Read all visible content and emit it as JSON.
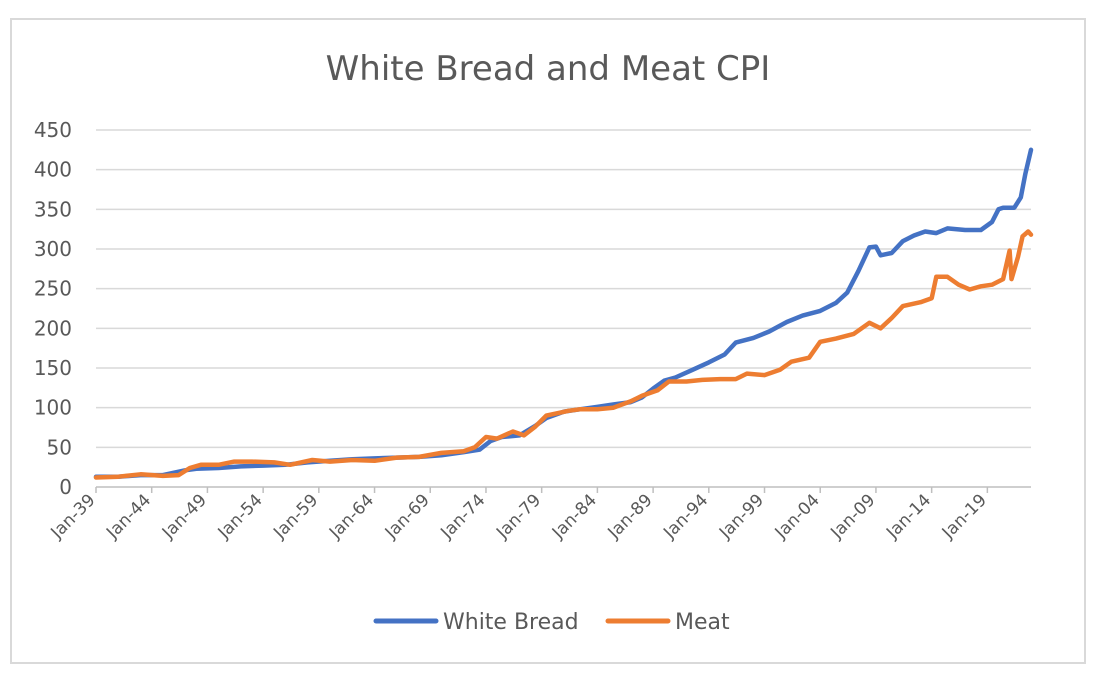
{
  "chart_data": {
    "type": "line",
    "title": "White Bread and Meat CPI",
    "xlabel": "",
    "ylabel": "",
    "ylim": [
      0,
      450
    ],
    "yticks": [
      0,
      50,
      100,
      150,
      200,
      250,
      300,
      350,
      400,
      450
    ],
    "xlim": [
      "Jan-39",
      "Dec-22"
    ],
    "x_tick_labels": [
      "Jan-39",
      "Jan-44",
      "Jan-49",
      "Jan-54",
      "Jan-59",
      "Jan-64",
      "Jan-69",
      "Jan-74",
      "Jan-79",
      "Jan-84",
      "Jan-89",
      "Jan-94",
      "Jan-99",
      "Jan-04",
      "Jan-09",
      "Jan-14",
      "Jan-19"
    ],
    "grid": "horizontal",
    "legend": "bottom",
    "series": [
      {
        "name": "White Bread",
        "color": "#4472c4",
        "points": [
          [
            "1939-01",
            13
          ],
          [
            "1941-01",
            13
          ],
          [
            "1943-01",
            15
          ],
          [
            "1945-01",
            15
          ],
          [
            "1947-01",
            21
          ],
          [
            "1948-01",
            23
          ],
          [
            "1950-01",
            24
          ],
          [
            "1952-01",
            26
          ],
          [
            "1954-01",
            27
          ],
          [
            "1956-01",
            28
          ],
          [
            "1958-01",
            31
          ],
          [
            "1960-01",
            33
          ],
          [
            "1962-01",
            35
          ],
          [
            "1964-01",
            36
          ],
          [
            "1966-01",
            37
          ],
          [
            "1968-01",
            38
          ],
          [
            "1970-01",
            40
          ],
          [
            "1972-01",
            44
          ],
          [
            "1973-06",
            47
          ],
          [
            "1974-06",
            58
          ],
          [
            "1975-06",
            63
          ],
          [
            "1977-01",
            65
          ],
          [
            "1978-06",
            77
          ],
          [
            "1979-06",
            87
          ],
          [
            "1981-01",
            95
          ],
          [
            "1982-06",
            98
          ],
          [
            "1984-01",
            101
          ],
          [
            "1985-06",
            104
          ],
          [
            "1987-01",
            107
          ],
          [
            "1988-01",
            113
          ],
          [
            "1989-01",
            124
          ],
          [
            "1990-01",
            134
          ],
          [
            "1991-01",
            138
          ],
          [
            "1992-06",
            147
          ],
          [
            "1994-01",
            157
          ],
          [
            "1995-06",
            167
          ],
          [
            "1996-06",
            182
          ],
          [
            "1998-01",
            188
          ],
          [
            "1999-06",
            196
          ],
          [
            "2001-01",
            208
          ],
          [
            "2002-06",
            216
          ],
          [
            "2004-01",
            222
          ],
          [
            "2005-06",
            232
          ],
          [
            "2006-06",
            245
          ],
          [
            "2007-06",
            272
          ],
          [
            "2008-06",
            302
          ],
          [
            "2009-01",
            303
          ],
          [
            "2009-06",
            292
          ],
          [
            "2010-06",
            295
          ],
          [
            "2011-06",
            310
          ],
          [
            "2012-06",
            317
          ],
          [
            "2013-06",
            322
          ],
          [
            "2014-06",
            320
          ],
          [
            "2015-06",
            326
          ],
          [
            "2017-01",
            324
          ],
          [
            "2018-06",
            324
          ],
          [
            "2019-06",
            334
          ],
          [
            "2020-01",
            350
          ],
          [
            "2020-06",
            352
          ],
          [
            "2021-06",
            352
          ],
          [
            "2022-01",
            365
          ],
          [
            "2022-06",
            395
          ],
          [
            "2022-12",
            425
          ]
        ]
      },
      {
        "name": "Meat",
        "color": "#ed7d31",
        "points": [
          [
            "1939-01",
            12
          ],
          [
            "1941-01",
            13
          ],
          [
            "1943-01",
            16
          ],
          [
            "1945-01",
            14
          ],
          [
            "1946-06",
            15
          ],
          [
            "1947-06",
            24
          ],
          [
            "1948-06",
            28
          ],
          [
            "1950-01",
            28
          ],
          [
            "1951-06",
            32
          ],
          [
            "1953-01",
            32
          ],
          [
            "1955-01",
            31
          ],
          [
            "1956-06",
            28
          ],
          [
            "1958-06",
            34
          ],
          [
            "1960-01",
            32
          ],
          [
            "1962-01",
            34
          ],
          [
            "1964-01",
            33
          ],
          [
            "1966-01",
            37
          ],
          [
            "1968-01",
            38
          ],
          [
            "1970-01",
            43
          ],
          [
            "1972-01",
            45
          ],
          [
            "1973-01",
            50
          ],
          [
            "1974-01",
            63
          ],
          [
            "1975-01",
            61
          ],
          [
            "1976-06",
            70
          ],
          [
            "1977-06",
            65
          ],
          [
            "1978-06",
            76
          ],
          [
            "1979-06",
            90
          ],
          [
            "1980-06",
            93
          ],
          [
            "1981-06",
            96
          ],
          [
            "1982-06",
            98
          ],
          [
            "1984-01",
            98
          ],
          [
            "1985-06",
            100
          ],
          [
            "1987-01",
            108
          ],
          [
            "1988-01",
            115
          ],
          [
            "1989-06",
            122
          ],
          [
            "1990-06",
            133
          ],
          [
            "1992-01",
            133
          ],
          [
            "1993-06",
            135
          ],
          [
            "1995-01",
            136
          ],
          [
            "1996-06",
            136
          ],
          [
            "1997-06",
            143
          ],
          [
            "1999-01",
            141
          ],
          [
            "2000-06",
            148
          ],
          [
            "2001-06",
            158
          ],
          [
            "2003-01",
            163
          ],
          [
            "2004-01",
            183
          ],
          [
            "2005-06",
            187
          ],
          [
            "2007-01",
            193
          ],
          [
            "2008-06",
            207
          ],
          [
            "2009-06",
            200
          ],
          [
            "2010-06",
            213
          ],
          [
            "2011-06",
            228
          ],
          [
            "2013-01",
            233
          ],
          [
            "2014-01",
            238
          ],
          [
            "2014-06",
            265
          ],
          [
            "2015-06",
            265
          ],
          [
            "2016-06",
            255
          ],
          [
            "2017-06",
            249
          ],
          [
            "2018-06",
            253
          ],
          [
            "2019-06",
            255
          ],
          [
            "2020-06",
            262
          ],
          [
            "2021-01",
            298
          ],
          [
            "2021-03",
            262
          ],
          [
            "2021-10",
            290
          ],
          [
            "2022-03",
            316
          ],
          [
            "2022-09",
            322
          ],
          [
            "2022-12",
            318
          ]
        ]
      }
    ]
  }
}
